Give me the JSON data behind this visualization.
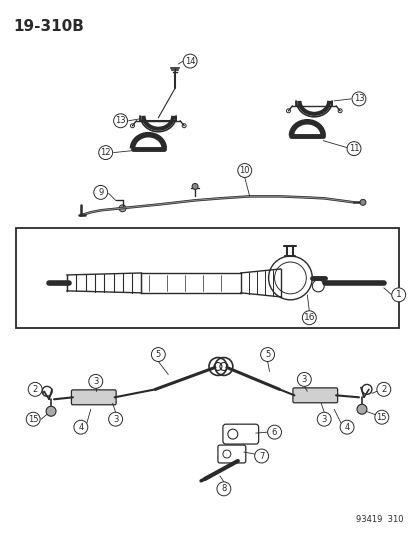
{
  "title": "19-310B",
  "footer": "93419  310",
  "bg_color": "#ffffff",
  "line_color": "#2a2a2a",
  "figsize": [
    4.16,
    5.33
  ],
  "dpi": 100
}
